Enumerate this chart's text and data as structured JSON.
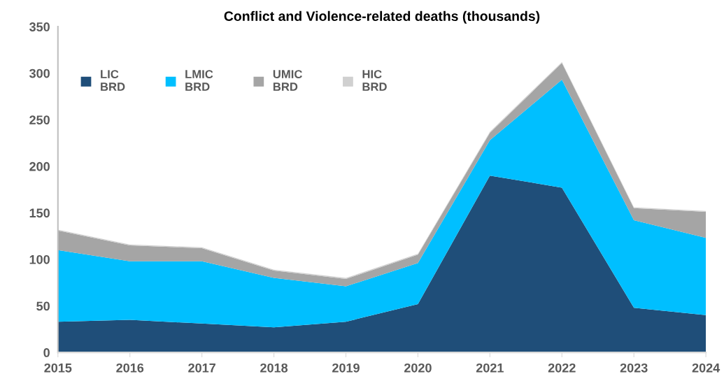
{
  "chart_data": {
    "type": "area",
    "stacked": true,
    "title": "Conflict and Violence-related deaths (thousands)",
    "x": [
      2015,
      2016,
      2017,
      2018,
      2019,
      2020,
      2021,
      2022,
      2023,
      2024
    ],
    "series": [
      {
        "name": "LIC BRD",
        "color": "#1f4e79",
        "values": [
          33,
          35,
          31,
          27,
          33,
          52,
          190,
          177,
          48,
          40
        ]
      },
      {
        "name": "LMIC BRD",
        "color": "#00bfff",
        "values": [
          77,
          63,
          67,
          53,
          38,
          44,
          38,
          116,
          94,
          83
        ]
      },
      {
        "name": "UMIC BRD",
        "color": "#a5a5a5",
        "values": [
          21,
          17,
          14,
          8,
          8,
          9,
          8,
          18,
          13,
          28
        ]
      },
      {
        "name": "HIC BRD",
        "color": "#d0d0d0",
        "values": [
          1,
          1,
          1,
          1,
          1,
          1,
          1,
          1,
          1,
          1
        ]
      }
    ],
    "xlim": [
      2015,
      2024
    ],
    "xticks": [
      2015,
      2016,
      2017,
      2018,
      2019,
      2020,
      2021,
      2022,
      2023,
      2024
    ],
    "ylim": [
      0,
      350
    ],
    "yticks": [
      0,
      50,
      100,
      150,
      200,
      250,
      300,
      350
    ],
    "grid": false,
    "legend": "top left"
  }
}
